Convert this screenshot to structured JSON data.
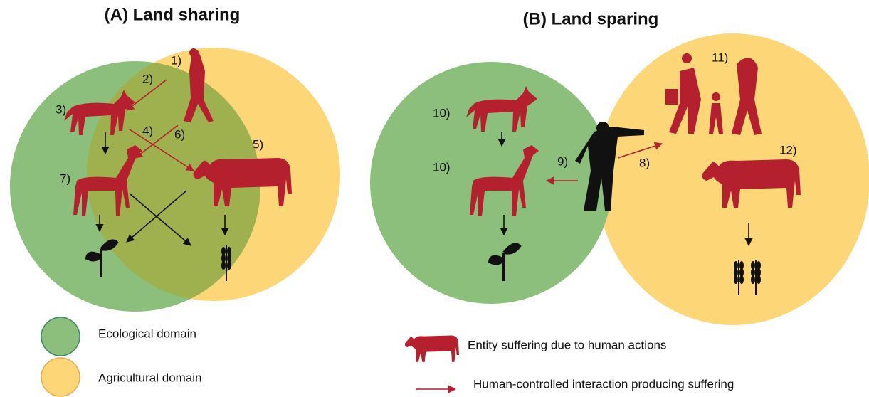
{
  "panels": [
    {
      "title": "(A) Land sharing",
      "labels": [
        "1)",
        "2)",
        "3)",
        "4)",
        "5)",
        "6)",
        "7)"
      ]
    },
    {
      "title": "(B) Land sparing",
      "labels": [
        "8)",
        "9)",
        "10)",
        "10)",
        "11)",
        "12)"
      ]
    }
  ],
  "legend": {
    "items": [
      "Ecological domain",
      "Agricultural domain",
      "Entity suffering due to human actions",
      "Human-controlled interaction producing suffering"
    ]
  }
}
